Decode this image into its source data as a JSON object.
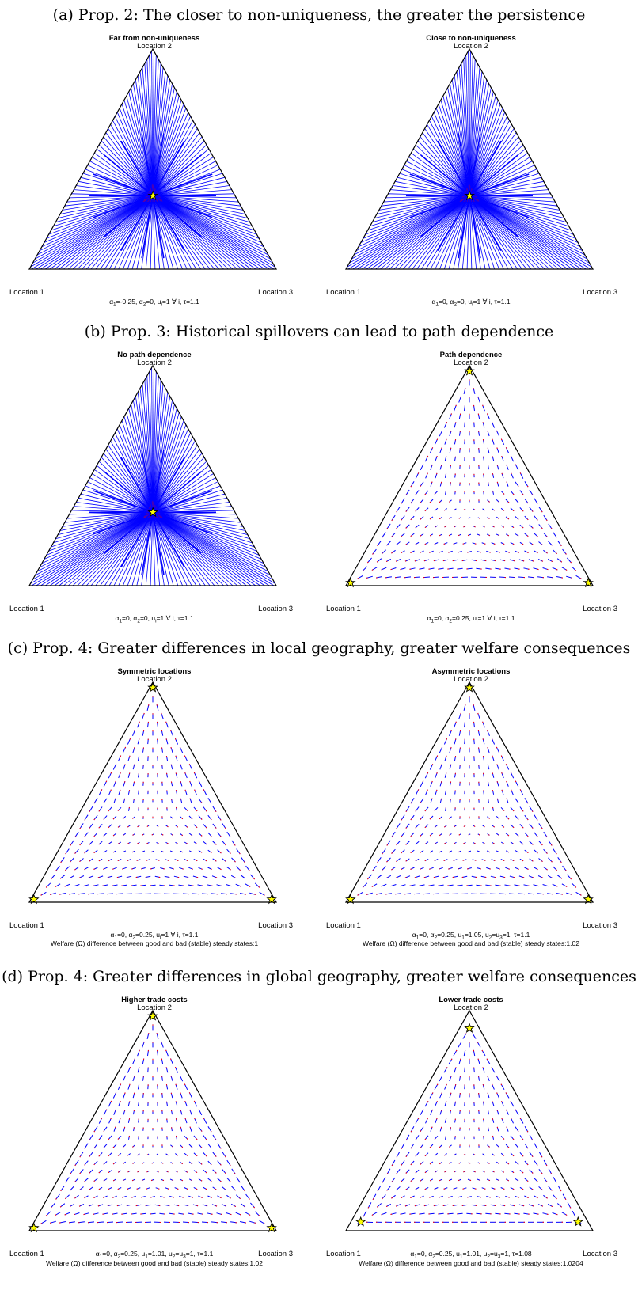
{
  "sections": [
    {
      "id": "a",
      "caption": "(a) Prop. 2: The closer to non-uniqueness, the greater the persistence",
      "panels": [
        {
          "title": "Far from non-uniqueness",
          "params": [
            [
              "α",
              "1",
              "=-0.25, "
            ],
            [
              "α",
              "2",
              "=0, "
            ],
            [
              "u",
              "i",
              "=1 ∀ i, "
            ],
            [
              "τ",
              "",
              "=1.1"
            ]
          ],
          "welfare": "",
          "mode": "lines",
          "stars": [
            [
              0.333,
              0.333
            ]
          ]
        },
        {
          "title": "Close to non-uniqueness",
          "params": [
            [
              "α",
              "1",
              "=0, "
            ],
            [
              "α",
              "2",
              "=0, "
            ],
            [
              "u",
              "i",
              "=1 ∀ i, "
            ],
            [
              "τ",
              "",
              "=1.1"
            ]
          ],
          "welfare": "",
          "mode": "lines",
          "stars": [
            [
              0.333,
              0.333
            ]
          ]
        }
      ]
    },
    {
      "id": "b",
      "caption": "(b) Prop. 3: Historical spillovers can lead to path dependence",
      "panels": [
        {
          "title": "No path dependence",
          "params": [
            [
              "α",
              "1",
              "=0, "
            ],
            [
              "α",
              "2",
              "=0, "
            ],
            [
              "u",
              "i",
              "=1 ∀ i, "
            ],
            [
              "τ",
              "",
              "=1.1"
            ]
          ],
          "welfare": "",
          "mode": "lines",
          "stars": [
            [
              0.333,
              0.333
            ]
          ]
        },
        {
          "title": "Path dependence",
          "params": [
            [
              "α",
              "1",
              "=0, "
            ],
            [
              "α",
              "2",
              "=0.25, "
            ],
            [
              "u",
              "i",
              "=1 ∀ i, "
            ],
            [
              "τ",
              "",
              "=1.1"
            ]
          ],
          "welfare": "",
          "mode": "dash",
          "stars": [
            [
              0.975,
              0.0125
            ],
            [
              0.0125,
              0.975
            ],
            [
              0.0125,
              0.0125
            ]
          ]
        }
      ]
    },
    {
      "id": "c",
      "caption": "(c) Prop. 4: Greater differences in local geography, greater welfare consequences",
      "panels": [
        {
          "title": "Symmetric locations",
          "params": [
            [
              "α",
              "1",
              "=0, "
            ],
            [
              "α",
              "2",
              "=0.25, "
            ],
            [
              "u",
              "i",
              "=1 ∀ i, "
            ],
            [
              "τ",
              "",
              "=1.1"
            ]
          ],
          "welfare": "Welfare (Ω) difference between good and bad (stable) steady states:1",
          "mode": "dash",
          "stars": [
            [
              0.975,
              0.0125
            ],
            [
              0.0125,
              0.975
            ],
            [
              0.0125,
              0.0125
            ]
          ]
        },
        {
          "title": "Asymmetric locations",
          "params": [
            [
              "α",
              "1",
              "=0, "
            ],
            [
              "α",
              "2",
              "=0.25, "
            ],
            [
              "u",
              "1",
              "=1.05, "
            ],
            [
              "u",
              "2",
              "=u"
            ],
            [
              "",
              "3",
              "=1, "
            ],
            [
              "τ",
              "",
              "=1.1"
            ]
          ],
          "welfare": "Welfare (Ω) difference between good and bad (stable) steady states:1.02",
          "mode": "dash",
          "stars": [
            [
              0.975,
              0.0125
            ],
            [
              0.0125,
              0.975
            ],
            [
              0.0125,
              0.0125
            ]
          ]
        }
      ]
    },
    {
      "id": "d",
      "caption": "(d) Prop. 4: Greater differences in global geography, greater welfare consequences",
      "panels": [
        {
          "title": "Higher trade costs",
          "params": [
            [
              "α",
              "1",
              "=0, "
            ],
            [
              "α",
              "2",
              "=0.25, "
            ],
            [
              "u",
              "1",
              "=1.01, "
            ],
            [
              "u",
              "2",
              "=u"
            ],
            [
              "",
              "3",
              "=1, "
            ],
            [
              "τ",
              "",
              "=1.1"
            ]
          ],
          "welfare": "Welfare (Ω) difference between good and bad (stable) steady states:1.02",
          "mode": "dash",
          "stars": [
            [
              0.975,
              0.0125
            ],
            [
              0.0125,
              0.975
            ],
            [
              0.0125,
              0.0125
            ]
          ]
        },
        {
          "title": "Lower trade costs",
          "params": [
            [
              "α",
              "1",
              "=0, "
            ],
            [
              "α",
              "2",
              "=0.25, "
            ],
            [
              "u",
              "1",
              "=1.01, "
            ],
            [
              "u",
              "2",
              "=u"
            ],
            [
              "",
              "3",
              "=1, "
            ],
            [
              "τ",
              "",
              "=1.08"
            ]
          ],
          "welfare": "Welfare (Ω) difference between good and bad (stable) steady states:1.0204",
          "mode": "dash",
          "stars": [
            [
              0.92,
              0.04
            ],
            [
              0.04,
              0.92
            ],
            [
              0.04,
              0.04
            ]
          ]
        }
      ]
    }
  ],
  "vertex_labels": {
    "left": "Location 1",
    "top": "Location 2",
    "right": "Location 3"
  },
  "colors": {
    "flow_lines": "#0000ff",
    "flow_heads": "#ff0000",
    "star_fill": "#ffff00",
    "triangle": "#000000"
  },
  "icons": {
    "steady_state": "star-icon"
  }
}
